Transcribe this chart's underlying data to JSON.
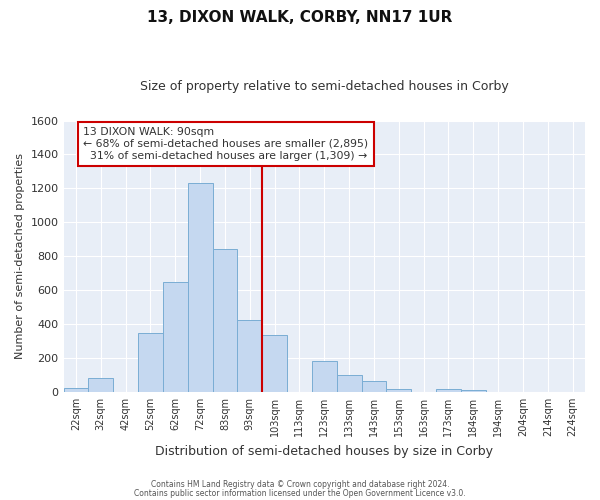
{
  "title": "13, DIXON WALK, CORBY, NN17 1UR",
  "subtitle": "Size of property relative to semi-detached houses in Corby",
  "xlabel": "Distribution of semi-detached houses by size in Corby",
  "ylabel": "Number of semi-detached properties",
  "bar_labels": [
    "22sqm",
    "32sqm",
    "42sqm",
    "52sqm",
    "62sqm",
    "72sqm",
    "83sqm",
    "93sqm",
    "103sqm",
    "113sqm",
    "123sqm",
    "133sqm",
    "143sqm",
    "153sqm",
    "163sqm",
    "173sqm",
    "184sqm",
    "194sqm",
    "204sqm",
    "214sqm",
    "224sqm"
  ],
  "bar_values": [
    25,
    85,
    0,
    350,
    650,
    1230,
    840,
    425,
    335,
    0,
    180,
    100,
    65,
    20,
    0,
    20,
    10,
    0,
    0,
    0,
    0
  ],
  "bar_color": "#c5d8f0",
  "bar_edge_color": "#7aadd4",
  "property_label": "13 DIXON WALK: 90sqm",
  "pct_smaller": "68%",
  "n_smaller": "2,895",
  "pct_larger": "31%",
  "n_larger": "1,309",
  "line_color": "#cc0000",
  "box_edge_color": "#cc0000",
  "ylim": [
    0,
    1600
  ],
  "yticks": [
    0,
    200,
    400,
    600,
    800,
    1000,
    1200,
    1400,
    1600
  ],
  "footer1": "Contains HM Land Registry data © Crown copyright and database right 2024.",
  "footer2": "Contains public sector information licensed under the Open Government Licence v3.0.",
  "fig_bg_color": "#ffffff",
  "plot_bg_color": "#e8eef7",
  "grid_color": "#ffffff",
  "title_fontsize": 11,
  "subtitle_fontsize": 9
}
